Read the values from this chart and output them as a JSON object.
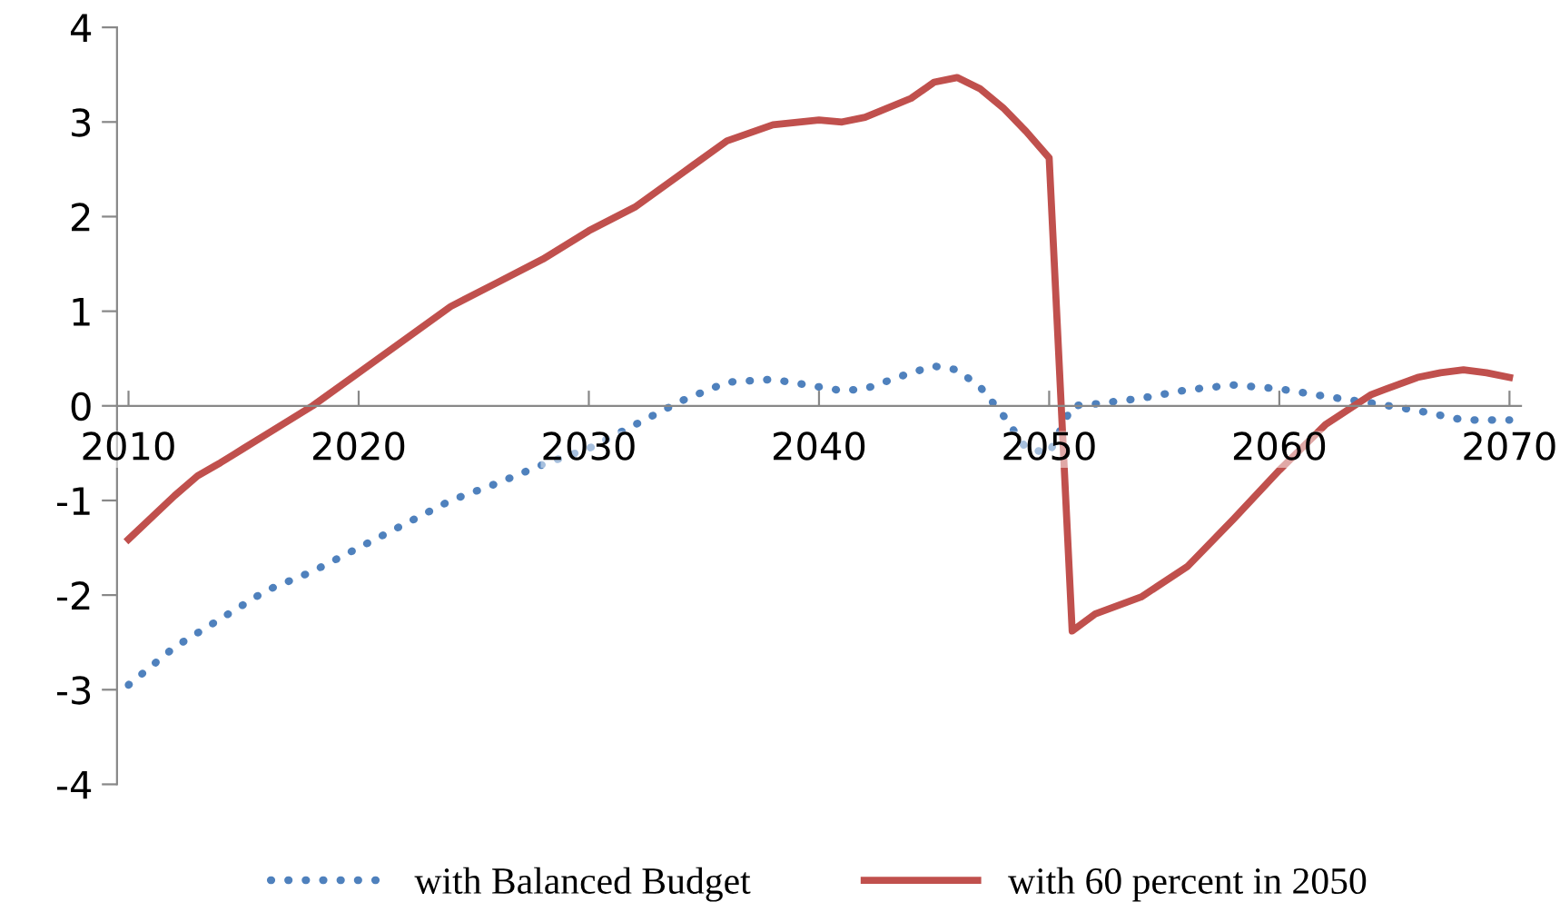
{
  "chart_data": {
    "type": "line",
    "x": [
      2010,
      2012,
      2013,
      2014,
      2015,
      2016,
      2018,
      2020,
      2022,
      2024,
      2026,
      2028,
      2030,
      2032,
      2034,
      2036,
      2038,
      2040,
      2041,
      2042,
      2044,
      2045,
      2046,
      2047,
      2048,
      2049,
      2050,
      2051,
      2052,
      2054,
      2056,
      2058,
      2060,
      2062,
      2064,
      2066,
      2067,
      2068,
      2069,
      2070
    ],
    "series": [
      {
        "name": "with Balanced Budget",
        "color": "#4f81bd",
        "line_style": "dotted",
        "values": [
          -2.95,
          -2.55,
          -2.4,
          -2.25,
          -2.1,
          -1.95,
          -1.75,
          -1.5,
          -1.25,
          -1.0,
          -0.82,
          -0.62,
          -0.45,
          -0.2,
          0.05,
          0.25,
          0.28,
          0.2,
          0.16,
          0.18,
          0.35,
          0.42,
          0.38,
          0.2,
          -0.1,
          -0.45,
          -0.5,
          0.0,
          0.02,
          0.08,
          0.17,
          0.22,
          0.18,
          0.1,
          0.03,
          -0.05,
          -0.1,
          -0.15,
          -0.15,
          -0.15
        ]
      },
      {
        "name": "with 60 percent in 2050",
        "color": "#c0504d",
        "line_style": "solid",
        "values": [
          -1.41,
          -0.95,
          -0.74,
          -0.6,
          -0.45,
          -0.3,
          0.0,
          0.35,
          0.7,
          1.05,
          1.3,
          1.55,
          1.85,
          2.1,
          2.45,
          2.8,
          2.97,
          3.02,
          3.0,
          3.05,
          3.25,
          3.42,
          3.47,
          3.35,
          3.15,
          2.9,
          2.62,
          -2.38,
          -2.2,
          -2.02,
          -1.7,
          -1.2,
          -0.68,
          -0.2,
          0.12,
          0.3,
          0.35,
          0.38,
          0.35,
          0.3
        ]
      }
    ],
    "xlim": [
      2009.5,
      2070.5
    ],
    "xticks": [
      2010,
      2020,
      2030,
      2040,
      2050,
      2060,
      2070
    ],
    "ylim": [
      -4,
      4
    ],
    "yticks": [
      -4,
      -3,
      -2,
      -1,
      0,
      1,
      2,
      3,
      4
    ],
    "grid": false,
    "legend": "bottom",
    "marker": "none"
  }
}
